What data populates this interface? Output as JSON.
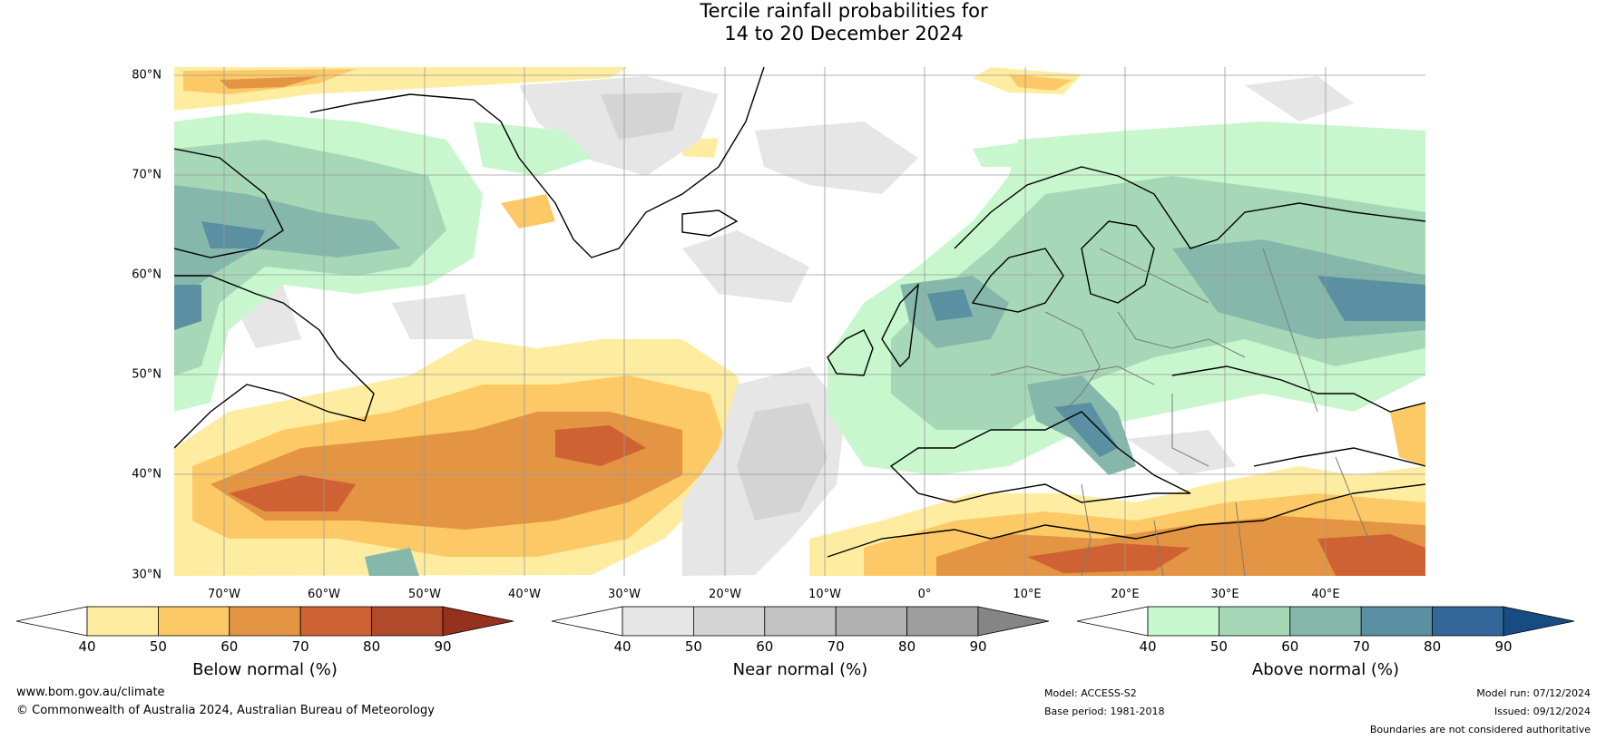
{
  "title": {
    "line1": "Tercile rainfall probabilities for",
    "line2": "14 to 20 December 2024"
  },
  "map": {
    "lat_labels": [
      "80°N",
      "70°N",
      "60°N",
      "50°N",
      "40°N",
      "30°N"
    ],
    "lon_labels": [
      "70°W",
      "60°W",
      "50°W",
      "40°W",
      "30°W",
      "20°W",
      "10°W",
      "0°",
      "10°E",
      "20°E",
      "30°E",
      "40°E"
    ],
    "extent": {
      "lon_min": -77,
      "lon_max": 48,
      "lat_min": 30,
      "lat_max": 81
    }
  },
  "colorbars": [
    {
      "label": "Below normal (%)",
      "ticks": [
        "40",
        "50",
        "60",
        "70",
        "80",
        "90"
      ],
      "colors": [
        "#ffffff",
        "#feeda0",
        "#fdc966",
        "#e39543",
        "#cf6233",
        "#b04a2a",
        "#96301f"
      ]
    },
    {
      "label": "Near normal (%)",
      "ticks": [
        "40",
        "50",
        "60",
        "70",
        "80",
        "90"
      ],
      "colors": [
        "#ffffff",
        "#e6e6e6",
        "#d4d4d4",
        "#c3c3c3",
        "#b1b1b1",
        "#9d9d9d",
        "#858585"
      ]
    },
    {
      "label": "Above normal (%)",
      "ticks": [
        "40",
        "50",
        "60",
        "70",
        "80",
        "90"
      ],
      "colors": [
        "#ffffff",
        "#c8f7cd",
        "#a6d8b8",
        "#85b8ab",
        "#5a90a2",
        "#336699",
        "#174c82"
      ]
    }
  ],
  "footer": {
    "url": "www.bom.gov.au/climate",
    "copyright": "© Commonwealth of Australia 2024, Australian Bureau of Meteorology",
    "model": "Model: ACCESS-S2",
    "base_period": "Base period: 1981-2018",
    "model_run": "Model run: 07/12/2024",
    "issued": "Issued: 09/12/2024",
    "disclaimer": "Boundaries are not considered authoritative"
  }
}
